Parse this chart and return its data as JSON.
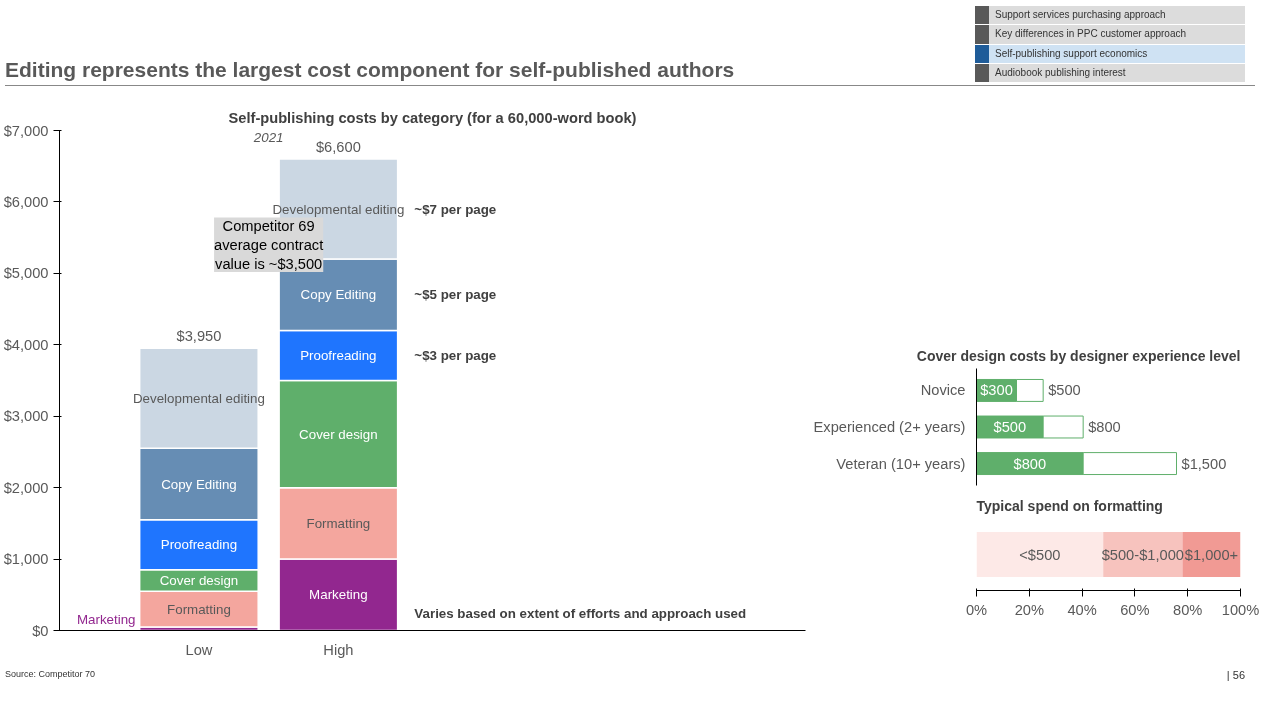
{
  "chart_data": [
    {
      "type": "bar",
      "stacked": true,
      "title": "Self-publishing costs by category (for a 60,000-word book)",
      "subtitle": "2021",
      "categories": [
        "Low",
        "High"
      ],
      "series": [
        {
          "name": "Marketing",
          "color": "#92278f",
          "values": [
            50,
            1000
          ]
        },
        {
          "name": "Formatting",
          "color": "#f4a69e",
          "values": [
            500,
            1000
          ]
        },
        {
          "name": "Cover design",
          "color": "#5faf6b",
          "values": [
            300,
            1500
          ]
        },
        {
          "name": "Proofreading",
          "color": "#1f75fe",
          "values": [
            700,
            700
          ]
        },
        {
          "name": "Copy Editing",
          "color": "#668db4",
          "values": [
            1000,
            1000
          ]
        },
        {
          "name": "Developmental editing",
          "color": "#cbd7e3",
          "values": [
            1400,
            1400
          ]
        }
      ],
      "totals": [
        "$3,950",
        "$6,600"
      ],
      "ylim": [
        0,
        7000
      ],
      "yticks": [
        {
          "value": 0,
          "label": "$0"
        },
        {
          "value": 1000,
          "label": "$1,000"
        },
        {
          "value": 2000,
          "label": "$2,000"
        },
        {
          "value": 3000,
          "label": "$3,000"
        },
        {
          "value": 4000,
          "label": "$4,000"
        },
        {
          "value": 5000,
          "label": "$5,000"
        },
        {
          "value": 6000,
          "label": "$6,000"
        },
        {
          "value": 7000,
          "label": "$7,000"
        }
      ],
      "grid": false,
      "annotations": [
        "Editing represents the largest cost component for self-published authors",
        "Support services purchasing approach",
        "Key differences in PPC  customer approach",
        "Self-publishing support economics",
        "Audiobook publishing interest",
        "Competitor 69 average contract value is ~$3,500",
        "Source: Competitor 70",
        "| 56",
        "~$7 per page",
        "~$5 per page",
        "~$3 per page",
        "Varies based on extent of efforts and approach used"
      ]
    },
    {
      "type": "bar",
      "orientation": "horizontal",
      "stacked": true,
      "title": "Cover design costs by designer experience level",
      "categories": [
        "Novice",
        "Experienced (2+ years)",
        "Veteran (10+ years)"
      ],
      "series": [
        {
          "color": "#5faf6b",
          "values": [
            300,
            500,
            800
          ],
          "value_labels": [
            "$300",
            "$500",
            "$800"
          ]
        },
        {
          "color": "#ffffff",
          "values": [
            200,
            300,
            700
          ]
        }
      ],
      "totals": [
        "$500",
        "$800",
        "$1,500"
      ],
      "tick_labels": "y",
      "grid": false
    },
    {
      "type": "bar",
      "orientation": "horizontal",
      "stacked": true,
      "title": "Typical spend on formatting",
      "categories": [
        null
      ],
      "series": [
        {
          "name": "<$500",
          "color": "#fde9e7",
          "values": [
            48
          ]
        },
        {
          "name": "$500-$1,000",
          "color": "#f7c3be",
          "values": [
            30
          ]
        },
        {
          "name": "$1,000+",
          "color": "#f19a94",
          "values": [
            22
          ]
        }
      ],
      "xlim": [
        0,
        100
      ],
      "xticks": [
        {
          "value": 0,
          "label": "0%"
        },
        {
          "value": 20,
          "label": "20%"
        },
        {
          "value": 40,
          "label": "40%"
        },
        {
          "value": 60,
          "label": "60%"
        },
        {
          "value": 80,
          "label": "80%"
        },
        {
          "value": 100,
          "label": "100%"
        }
      ],
      "tick_labels": "x",
      "grid": false
    }
  ]
}
